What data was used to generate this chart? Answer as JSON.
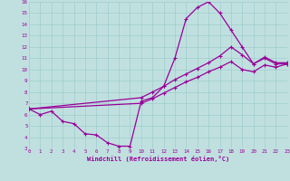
{
  "xlabel": "Windchill (Refroidissement éolien,°C)",
  "bg_color": "#c0e0e0",
  "grid_color": "#a0cccc",
  "line_color": "#990099",
  "xlim": [
    0,
    23
  ],
  "ylim": [
    3,
    16
  ],
  "xticks": [
    0,
    1,
    2,
    3,
    4,
    5,
    6,
    7,
    8,
    9,
    10,
    11,
    12,
    13,
    14,
    15,
    16,
    17,
    18,
    19,
    20,
    21,
    22,
    23
  ],
  "yticks": [
    3,
    4,
    5,
    6,
    7,
    8,
    9,
    10,
    11,
    12,
    13,
    14,
    15,
    16
  ],
  "curve1_x": [
    0,
    1,
    2,
    3,
    4,
    5,
    6,
    7,
    8,
    9,
    10,
    11,
    12,
    13,
    14,
    15,
    16,
    17,
    18,
    19,
    20,
    21,
    22,
    23
  ],
  "curve1_y": [
    6.5,
    6.0,
    6.3,
    5.4,
    5.2,
    4.3,
    4.2,
    3.5,
    3.2,
    3.2,
    7.2,
    7.5,
    8.5,
    11.0,
    14.5,
    15.5,
    16.0,
    15.0,
    13.5,
    12.0,
    10.5,
    11.0,
    10.5,
    10.5
  ],
  "curve2_x": [
    0,
    10,
    11,
    12,
    13,
    14,
    15,
    16,
    17,
    18,
    19,
    20,
    21,
    22,
    23
  ],
  "curve2_y": [
    6.5,
    7.5,
    8.0,
    8.5,
    9.1,
    9.6,
    10.1,
    10.6,
    11.2,
    12.0,
    11.3,
    10.5,
    11.1,
    10.6,
    10.6
  ],
  "curve3_x": [
    0,
    10,
    11,
    12,
    13,
    14,
    15,
    16,
    17,
    18,
    19,
    20,
    21,
    22,
    23
  ],
  "curve3_y": [
    6.5,
    7.0,
    7.4,
    7.9,
    8.4,
    8.9,
    9.3,
    9.8,
    10.2,
    10.7,
    10.0,
    9.8,
    10.4,
    10.2,
    10.5
  ]
}
